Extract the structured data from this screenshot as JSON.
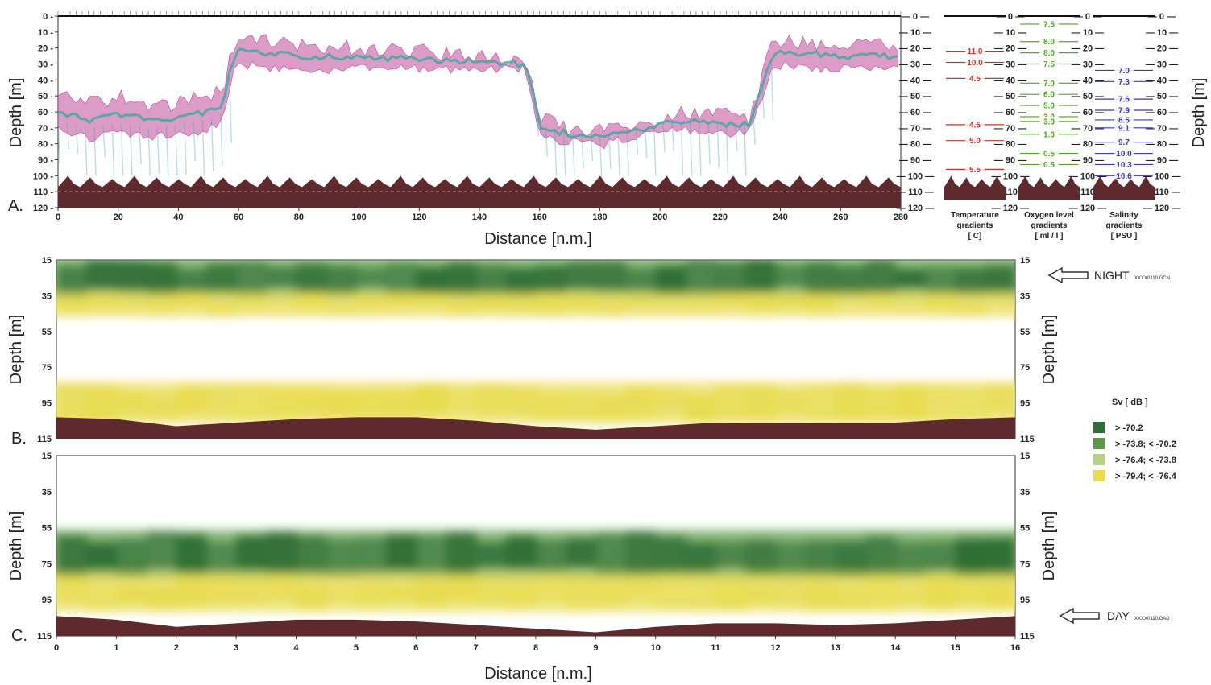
{
  "panels": [
    {
      "letter": "A.",
      "xlabel": "Distance [n.m.]",
      "ylabel": "Depth [m]",
      "right_ylabel": "Depth [m]"
    },
    {
      "letter": "B.",
      "ylabel": "Depth [m]",
      "right_ylabel": "Depth [m]"
    },
    {
      "letter": "C.",
      "xlabel": "Distance [n.m.]",
      "ylabel": "Depth [m]",
      "right_ylabel": "Depth [m]"
    }
  ],
  "gradient_titles": {
    "temperature": [
      "Temperature",
      "gradients",
      "[ C]"
    ],
    "oxygen": [
      "Oxygen level",
      "gradients",
      "[ ml / l ]"
    ],
    "salinity": [
      "Salinity",
      "gradients",
      "[ PSU ]"
    ]
  },
  "annotations": {
    "night": "NIGHT",
    "night_file": "XXXX0110.GCN",
    "day": "DAY",
    "day_file": "XXXX0110.GAD"
  },
  "legend": {
    "title": "Sv [ dB ]",
    "items": [
      {
        "label": "> -70.2",
        "color": "#2f6e35"
      },
      {
        "label": "> -73.8;  < -70.2",
        "color": "#5a9a45"
      },
      {
        "label": "> -76.4;  < -73.8",
        "color": "#b6d084"
      },
      {
        "label": "> -79.4;  < -76.4",
        "color": "#e8dc50"
      }
    ]
  },
  "colors": {
    "seabed": "#5e2a2e",
    "night_layer": "#2f6e35",
    "mid_layer": "#5a9a45",
    "light_layer": "#b6d084",
    "yellow_layer": "#e8dc50",
    "echo_magenta": "#c04a9a",
    "echo_teal": "#3fa7a0",
    "temperature": "#c0392b",
    "oxygen": "#5aa02c",
    "salinity": "#3b3bb0"
  },
  "chart_data": [
    {
      "id": "A",
      "type": "area",
      "xlabel": "Distance [n.m.]",
      "ylabel": "Depth [m]",
      "xlim": [
        0,
        280
      ],
      "ylim": [
        0,
        120
      ],
      "x_ticks": [
        0,
        20,
        40,
        60,
        80,
        100,
        120,
        140,
        160,
        180,
        200,
        220,
        240,
        260,
        280
      ],
      "y_ticks": [
        0,
        10,
        20,
        30,
        40,
        50,
        60,
        70,
        80,
        90,
        100,
        110,
        120
      ],
      "scattering_layer_upper": {
        "x": [
          0,
          10,
          20,
          30,
          40,
          50,
          55,
          58,
          60,
          80,
          100,
          120,
          140,
          155,
          158,
          160,
          170,
          180,
          190,
          200,
          210,
          220,
          230,
          235,
          238,
          240,
          260,
          280
        ],
        "y": [
          50,
          55,
          50,
          55,
          55,
          50,
          45,
          20,
          15,
          18,
          20,
          22,
          25,
          28,
          45,
          65,
          70,
          72,
          70,
          65,
          60,
          62,
          65,
          30,
          15,
          15,
          18,
          18
        ]
      },
      "scattering_layer_lower": {
        "x": [
          0,
          10,
          20,
          30,
          40,
          50,
          55,
          58,
          60,
          80,
          100,
          120,
          140,
          155,
          158,
          160,
          170,
          180,
          190,
          200,
          210,
          220,
          230,
          235,
          238,
          240,
          260,
          280
        ],
        "y": [
          70,
          75,
          72,
          75,
          72,
          70,
          65,
          35,
          30,
          32,
          32,
          32,
          32,
          32,
          55,
          75,
          78,
          80,
          75,
          72,
          70,
          72,
          72,
          45,
          30,
          30,
          32,
          32
        ]
      },
      "seabed": {
        "depth_range": [
          100,
          120
        ]
      }
    },
    {
      "id": "temperature_gradients",
      "type": "table",
      "title": "Temperature gradients",
      "unit": "[ C]",
      "depths": [
        22,
        29,
        39,
        68,
        78,
        96
      ],
      "values": [
        "11.0",
        "10.0",
        "4.5",
        "4.5",
        "5.0",
        "5.5"
      ]
    },
    {
      "id": "oxygen_gradients",
      "type": "table",
      "title": "Oxygen level gradients",
      "unit": "[ ml / l ]",
      "depths": [
        5,
        16,
        23,
        30,
        42,
        49,
        56,
        63,
        66,
        74,
        86,
        93
      ],
      "values": [
        "7.5",
        "8.0",
        "8.0",
        "7.5",
        "7.0",
        "6.0",
        "5.0",
        "3.0",
        "3.0",
        "1.0",
        "0.5",
        "0.5"
      ]
    },
    {
      "id": "salinity_gradients",
      "type": "table",
      "title": "Salinity gradients",
      "unit": "[ PSU ]",
      "depths": [
        34,
        41,
        52,
        59,
        65,
        70,
        79,
        86,
        93,
        100
      ],
      "values": [
        "7.0",
        "7.3",
        "7.6",
        "7.9",
        "8.5",
        "9.1",
        "9.7",
        "10.0",
        "10.3",
        "10.6"
      ]
    },
    {
      "id": "B",
      "type": "heatmap",
      "title": "NIGHT",
      "ylabel": "Depth [m]",
      "xlim": [
        0,
        16
      ],
      "ylim": [
        15,
        115
      ],
      "y_ticks": [
        15,
        35,
        55,
        75,
        95,
        115
      ],
      "layers": [
        {
          "depth": [
            15,
            35
          ],
          "class": "> -70.2"
        },
        {
          "depth": [
            35,
            45
          ],
          "class": "> -79.4; < -76.4"
        },
        {
          "depth": [
            85,
            105
          ],
          "class": "> -79.4; < -76.4"
        }
      ],
      "seabed": {
        "x": [
          0,
          1,
          2,
          3,
          4,
          5,
          6,
          7,
          8,
          9,
          10,
          11,
          12,
          13,
          14,
          15,
          16
        ],
        "depth": [
          103,
          104,
          108,
          106,
          104,
          103,
          103,
          105,
          108,
          110,
          108,
          106,
          106,
          106,
          106,
          104,
          103
        ]
      }
    },
    {
      "id": "C",
      "type": "heatmap",
      "title": "DAY",
      "xlabel": "Distance [n.m.]",
      "ylabel": "Depth [m]",
      "xlim": [
        0,
        16
      ],
      "ylim": [
        15,
        115
      ],
      "x_ticks": [
        0,
        1,
        2,
        3,
        4,
        5,
        6,
        7,
        8,
        9,
        10,
        11,
        12,
        13,
        14,
        15,
        16
      ],
      "y_ticks": [
        15,
        35,
        55,
        75,
        95,
        115
      ],
      "layers": [
        {
          "depth": [
            58,
            82
          ],
          "class": "> -70.2"
        },
        {
          "depth": [
            82,
            100
          ],
          "class": "> -79.4; < -76.4"
        }
      ],
      "seabed": {
        "x": [
          0,
          1,
          2,
          3,
          4,
          5,
          6,
          7,
          8,
          9,
          10,
          11,
          12,
          13,
          14,
          15,
          16
        ],
        "depth": [
          104,
          106,
          110,
          108,
          106,
          106,
          107,
          109,
          111,
          113,
          110,
          108,
          108,
          109,
          108,
          106,
          104
        ]
      }
    }
  ]
}
